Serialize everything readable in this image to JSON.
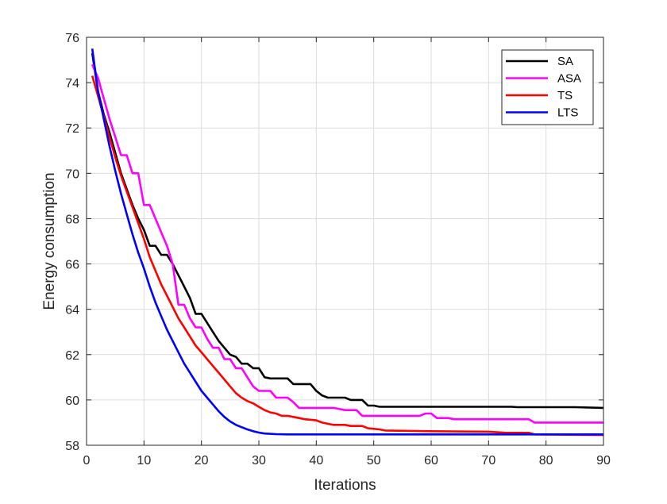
{
  "chart_data": {
    "type": "line",
    "title": "",
    "xlabel": "Iterations",
    "ylabel": "Energy consumption",
    "xlim": [
      0,
      90
    ],
    "ylim": [
      58,
      76
    ],
    "xticks": [
      0,
      10,
      20,
      30,
      40,
      50,
      60,
      70,
      80,
      90
    ],
    "yticks": [
      58,
      60,
      62,
      64,
      66,
      68,
      70,
      72,
      74,
      76
    ],
    "grid": true,
    "legend_position": "top-right",
    "series": [
      {
        "name": "SA",
        "color": "#000000",
        "points": [
          [
            1,
            75.3
          ],
          [
            2,
            73.6
          ],
          [
            3,
            72.6
          ],
          [
            4,
            71.8
          ],
          [
            5,
            70.9
          ],
          [
            6,
            70.0
          ],
          [
            7,
            69.3
          ],
          [
            8,
            68.6
          ],
          [
            9,
            68.0
          ],
          [
            10,
            67.5
          ],
          [
            11,
            66.8
          ],
          [
            12,
            66.8
          ],
          [
            13,
            66.4
          ],
          [
            14,
            66.4
          ],
          [
            15,
            66.0
          ],
          [
            16,
            65.5
          ],
          [
            17,
            65.0
          ],
          [
            18,
            64.5
          ],
          [
            19,
            63.8
          ],
          [
            20,
            63.8
          ],
          [
            21,
            63.4
          ],
          [
            22,
            63.0
          ],
          [
            23,
            62.6
          ],
          [
            24,
            62.3
          ],
          [
            25,
            62.0
          ],
          [
            26,
            61.9
          ],
          [
            27,
            61.6
          ],
          [
            28,
            61.6
          ],
          [
            29,
            61.4
          ],
          [
            30,
            61.4
          ],
          [
            31,
            61.0
          ],
          [
            32,
            60.95
          ],
          [
            34,
            60.95
          ],
          [
            35,
            60.95
          ],
          [
            36,
            60.7
          ],
          [
            37,
            60.7
          ],
          [
            39,
            60.7
          ],
          [
            40,
            60.4
          ],
          [
            41,
            60.2
          ],
          [
            42,
            60.1
          ],
          [
            45,
            60.1
          ],
          [
            46,
            60.0
          ],
          [
            48,
            60.0
          ],
          [
            49,
            59.75
          ],
          [
            50,
            59.75
          ],
          [
            51,
            59.7
          ],
          [
            60,
            59.7
          ],
          [
            74,
            59.7
          ],
          [
            75,
            59.68
          ],
          [
            85,
            59.68
          ],
          [
            90,
            59.65
          ]
        ]
      },
      {
        "name": "ASA",
        "color": "#ff00ff",
        "points": [
          [
            1,
            74.8
          ],
          [
            2,
            74.2
          ],
          [
            3,
            73.3
          ],
          [
            4,
            72.4
          ],
          [
            5,
            71.6
          ],
          [
            6,
            70.8
          ],
          [
            7,
            70.8
          ],
          [
            8,
            70.0
          ],
          [
            9,
            70.0
          ],
          [
            10,
            68.6
          ],
          [
            11,
            68.6
          ],
          [
            12,
            68.0
          ],
          [
            13,
            67.4
          ],
          [
            14,
            66.8
          ],
          [
            15,
            66.0
          ],
          [
            16,
            64.2
          ],
          [
            17,
            64.2
          ],
          [
            18,
            63.6
          ],
          [
            19,
            63.2
          ],
          [
            20,
            63.2
          ],
          [
            21,
            62.7
          ],
          [
            22,
            62.3
          ],
          [
            23,
            62.3
          ],
          [
            24,
            61.8
          ],
          [
            25,
            61.8
          ],
          [
            26,
            61.4
          ],
          [
            27,
            61.4
          ],
          [
            28,
            61.0
          ],
          [
            29,
            60.6
          ],
          [
            30,
            60.4
          ],
          [
            32,
            60.4
          ],
          [
            33,
            60.1
          ],
          [
            35,
            60.1
          ],
          [
            36,
            59.9
          ],
          [
            37,
            59.65
          ],
          [
            43,
            59.65
          ],
          [
            45,
            59.55
          ],
          [
            47,
            59.55
          ],
          [
            48,
            59.3
          ],
          [
            58,
            59.3
          ],
          [
            59,
            59.4
          ],
          [
            60,
            59.4
          ],
          [
            61,
            59.2
          ],
          [
            63,
            59.2
          ],
          [
            64,
            59.15
          ],
          [
            75,
            59.15
          ],
          [
            77,
            59.15
          ],
          [
            78,
            59.0
          ],
          [
            90,
            59.0
          ]
        ]
      },
      {
        "name": "TS",
        "color": "#ff0000",
        "points": [
          [
            1,
            74.3
          ],
          [
            2,
            73.4
          ],
          [
            3,
            72.5
          ],
          [
            4,
            71.6
          ],
          [
            5,
            70.7
          ],
          [
            6,
            69.9
          ],
          [
            7,
            69.2
          ],
          [
            8,
            68.5
          ],
          [
            9,
            67.8
          ],
          [
            10,
            67.1
          ],
          [
            11,
            66.3
          ],
          [
            12,
            65.7
          ],
          [
            13,
            65.1
          ],
          [
            14,
            64.6
          ],
          [
            15,
            64.1
          ],
          [
            16,
            63.6
          ],
          [
            17,
            63.2
          ],
          [
            18,
            62.8
          ],
          [
            19,
            62.4
          ],
          [
            20,
            62.1
          ],
          [
            21,
            61.8
          ],
          [
            22,
            61.5
          ],
          [
            23,
            61.2
          ],
          [
            24,
            60.9
          ],
          [
            25,
            60.6
          ],
          [
            26,
            60.3
          ],
          [
            27,
            60.1
          ],
          [
            28,
            59.95
          ],
          [
            29,
            59.85
          ],
          [
            30,
            59.7
          ],
          [
            31,
            59.55
          ],
          [
            32,
            59.45
          ],
          [
            33,
            59.4
          ],
          [
            34,
            59.3
          ],
          [
            35,
            59.3
          ],
          [
            36,
            59.25
          ],
          [
            37,
            59.2
          ],
          [
            38,
            59.15
          ],
          [
            40,
            59.1
          ],
          [
            41,
            59.0
          ],
          [
            42,
            58.95
          ],
          [
            43,
            58.9
          ],
          [
            45,
            58.9
          ],
          [
            46,
            58.85
          ],
          [
            48,
            58.85
          ],
          [
            49,
            58.75
          ],
          [
            51,
            58.7
          ],
          [
            52,
            58.65
          ],
          [
            60,
            58.62
          ],
          [
            70,
            58.6
          ],
          [
            73,
            58.55
          ],
          [
            77,
            58.55
          ],
          [
            78,
            58.48
          ],
          [
            90,
            58.45
          ]
        ]
      },
      {
        "name": "LTS",
        "color": "#0000ff",
        "points": [
          [
            1,
            75.5
          ],
          [
            2,
            73.6
          ],
          [
            3,
            72.4
          ],
          [
            4,
            71.2
          ],
          [
            5,
            70.1
          ],
          [
            6,
            69.1
          ],
          [
            7,
            68.2
          ],
          [
            8,
            67.3
          ],
          [
            9,
            66.5
          ],
          [
            10,
            65.8
          ],
          [
            11,
            65.0
          ],
          [
            12,
            64.3
          ],
          [
            13,
            63.7
          ],
          [
            14,
            63.1
          ],
          [
            15,
            62.6
          ],
          [
            16,
            62.1
          ],
          [
            17,
            61.6
          ],
          [
            18,
            61.2
          ],
          [
            19,
            60.8
          ],
          [
            20,
            60.4
          ],
          [
            21,
            60.1
          ],
          [
            22,
            59.8
          ],
          [
            23,
            59.5
          ],
          [
            24,
            59.25
          ],
          [
            25,
            59.05
          ],
          [
            26,
            58.9
          ],
          [
            27,
            58.8
          ],
          [
            28,
            58.7
          ],
          [
            29,
            58.62
          ],
          [
            30,
            58.56
          ],
          [
            31,
            58.52
          ],
          [
            33,
            58.49
          ],
          [
            35,
            58.48
          ],
          [
            90,
            58.48
          ]
        ]
      }
    ]
  }
}
